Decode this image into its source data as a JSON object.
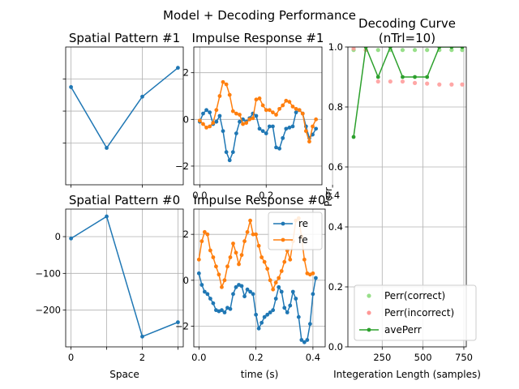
{
  "suptitle": "Model + Decoding Performance",
  "colors": {
    "blue": "#1f77b4",
    "orange": "#ff7f0e",
    "green": "#2ca02c",
    "red": "#d62728",
    "lightgreen": "#98df8a",
    "lightred": "#ff9896",
    "grid": "#b0b0b0"
  },
  "chart_data": [
    {
      "id": "sp1",
      "type": "line",
      "title": "Spatial Pattern #1",
      "xlabel": "",
      "ylabel": "",
      "x": [
        0,
        1,
        2,
        3
      ],
      "series": [
        {
          "values": [
            2.25,
            0.35,
            1.95,
            2.85
          ]
        }
      ],
      "xlim": [
        -0.15,
        3.15
      ],
      "ylim": [
        -0.8,
        3.5
      ],
      "xticks": [
        0,
        2
      ],
      "xticklabels": [
        "",
        ""
      ],
      "yticks": [
        0.5,
        1.5,
        2.5
      ],
      "yticklabels": [
        "",
        "",
        ""
      ],
      "grid": true
    },
    {
      "id": "ir1",
      "type": "line",
      "title": "Impulse Response #1",
      "xlabel": "",
      "ylabel": "",
      "t": {
        "start": 0.0,
        "step": 0.01
      },
      "series": [
        {
          "values": [
            -0.1,
            0.25,
            0.4,
            0.3,
            -0.2,
            -0.1,
            0.15,
            -0.5,
            -1.4,
            -1.75,
            -1.4,
            -0.6,
            -0.1,
            0.0,
            -0.1,
            0.05,
            0.25,
            0.15,
            -0.4,
            -0.5,
            -0.6,
            -0.3,
            -0.3,
            -1.2,
            -1.25,
            -0.8,
            -0.4,
            -0.35,
            -0.3,
            0.3,
            0.4,
            0.25,
            -0.3,
            -0.8,
            -0.65,
            -0.4
          ]
        },
        {
          "values": [
            -0.05,
            -0.2,
            -0.35,
            -0.3,
            -0.15,
            0.4,
            1.0,
            1.6,
            1.5,
            1.05,
            0.35,
            0.25,
            0.2,
            -0.2,
            -0.15,
            0.0,
            0.05,
            0.85,
            0.9,
            0.6,
            0.4,
            0.4,
            0.3,
            0.2,
            0.45,
            0.6,
            0.8,
            0.75,
            0.55,
            0.45,
            0.4,
            0.25,
            -0.5,
            -0.95,
            -0.3,
            0.0
          ]
        }
      ],
      "xlim": [
        -0.018,
        0.368
      ],
      "ylim": [
        -2.8,
        3.1
      ],
      "xticks": [
        0.0,
        0.2,
        0.4
      ],
      "xticklabels": [
        "0.0",
        "0.2",
        "0.4"
      ],
      "yticks": [
        -2,
        0,
        2
      ],
      "yticklabels": [
        "−2",
        "0",
        "2"
      ],
      "grid": true
    },
    {
      "id": "sp0",
      "type": "line",
      "title": "Spatial Pattern #0",
      "xlabel": "Space",
      "ylabel": "",
      "x": [
        0,
        1,
        2,
        3
      ],
      "series": [
        {
          "values": [
            -5,
            55,
            -272,
            -233
          ]
        }
      ],
      "xlim": [
        -0.15,
        3.15
      ],
      "ylim": [
        -300,
        75
      ],
      "xticks": [
        0,
        1,
        2,
        3
      ],
      "xticklabels": [
        "0",
        "",
        "2",
        ""
      ],
      "yticks": [
        0,
        -100,
        -200
      ],
      "yticklabels": [
        "0",
        "−100",
        "−200"
      ],
      "grid": true
    },
    {
      "id": "ir0",
      "type": "line",
      "title": "Impulse Response #0",
      "xlabel": "time (s)",
      "ylabel": "",
      "t": {
        "start": 0.0,
        "step": 0.01
      },
      "series": [
        {
          "name": "re",
          "values": [
            0.3,
            -0.2,
            -0.5,
            -0.6,
            -0.8,
            -1.0,
            -1.3,
            -1.35,
            -1.3,
            -1.4,
            -1.2,
            -1.25,
            -0.6,
            -0.3,
            -0.2,
            -0.25,
            -0.7,
            -0.4,
            -0.5,
            -0.6,
            -1.5,
            -2.1,
            -1.85,
            -1.6,
            -1.5,
            -1.4,
            -1.3,
            -0.8,
            -0.3,
            -0.5,
            -1.2,
            -1.4,
            -1.1,
            -0.5,
            -0.8,
            -1.6,
            -2.6,
            -2.7,
            -2.6,
            -1.9,
            -0.6,
            0.1
          ]
        },
        {
          "name": "fe",
          "values": [
            0.9,
            1.7,
            2.1,
            2.0,
            1.3,
            1.0,
            0.6,
            0.25,
            -0.3,
            0.0,
            0.6,
            1.0,
            1.6,
            1.2,
            0.7,
            1.1,
            1.7,
            2.1,
            2.6,
            2.0,
            2.0,
            1.5,
            1.0,
            0.8,
            0.5,
            0.0,
            -0.4,
            -0.1,
            0.1,
            0.4,
            0.8,
            1.3,
            0.9,
            1.7,
            2.6,
            2.7,
            1.9,
            0.9,
            0.3,
            0.25,
            0.3
          ]
        }
      ],
      "legend": [
        "re",
        "fe"
      ],
      "xlim": [
        -0.018,
        0.443
      ],
      "ylim": [
        -2.9,
        3.1
      ],
      "xticks": [
        0.0,
        0.2,
        0.4
      ],
      "xticklabels": [
        "0.0",
        "0.2",
        "0.4"
      ],
      "yticks": [
        -2,
        0,
        2
      ],
      "yticklabels": [
        "−2",
        "0",
        "2"
      ],
      "grid": true
    },
    {
      "id": "dc",
      "type": "line",
      "title": "Decoding Curve\n(nTrl=10)",
      "xlabel": "Integeration Length (samples)",
      "ylabel": "Perr",
      "x": [
        75,
        150,
        225,
        300,
        375,
        450,
        525,
        600,
        675,
        740
      ],
      "series": [
        {
          "name": "Perr(correct)",
          "values": [
            0.99,
            0.99,
            0.99,
            0.99,
            0.99,
            0.99,
            0.99,
            0.99,
            0.99,
            0.99
          ]
        },
        {
          "name": "Perr(incorrect)",
          "values": [
            0.995,
            0.99,
            0.885,
            0.885,
            0.885,
            0.88,
            0.878,
            0.875,
            0.875,
            0.875
          ]
        },
        {
          "name": "avePerr",
          "values": [
            0.7,
            1.0,
            0.9,
            1.0,
            0.9,
            0.9,
            0.9,
            1.0,
            1.0,
            1.0
          ]
        }
      ],
      "legend": [
        "Perr(correct)",
        "Perr(incorrect)",
        "avePerr"
      ],
      "xlim": [
        40,
        765
      ],
      "ylim": [
        0,
        1.0
      ],
      "xticks": [
        250,
        500,
        750
      ],
      "xticklabels": [
        "250",
        "500",
        "750"
      ],
      "yticks": [
        0,
        0.2,
        0.4,
        0.6,
        0.8,
        1.0
      ],
      "yticklabels": [
        "0.0",
        "0.2",
        "0.4",
        "0.6",
        "0.8",
        "1.0"
      ],
      "grid": true
    }
  ]
}
